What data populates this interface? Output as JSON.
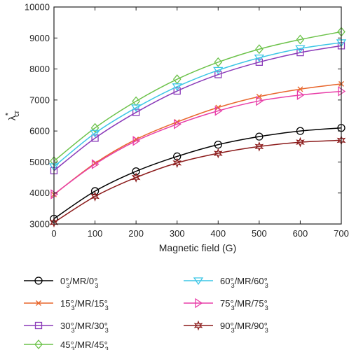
{
  "chart_data": {
    "type": "line",
    "xlabel": "Magnetic field (G)",
    "ylabel": "λ*cr",
    "ylabel_main": "λ",
    "ylabel_sup": "*",
    "ylabel_sub": "cr",
    "x": [
      0,
      100,
      200,
      300,
      400,
      500,
      600,
      700
    ],
    "xlim": [
      0,
      700
    ],
    "ylim": [
      3000,
      10000
    ],
    "xticks": [
      0,
      100,
      200,
      300,
      400,
      500,
      600,
      700
    ],
    "yticks": [
      3000,
      4000,
      5000,
      6000,
      7000,
      8000,
      9000,
      10000
    ],
    "grid": false,
    "legend_position": "bottom",
    "series": [
      {
        "name": "0°3/MR/0°3",
        "angle": "0",
        "color": "#000000",
        "marker": "circle",
        "values": [
          3170,
          4060,
          4700,
          5180,
          5560,
          5820,
          6000,
          6100
        ]
      },
      {
        "name": "15°3/MR/15°3",
        "angle": "15",
        "color": "#e8662c",
        "marker": "x",
        "values": [
          3950,
          4960,
          5730,
          6290,
          6760,
          7110,
          7350,
          7520
        ]
      },
      {
        "name": "30°3/MR/30°3",
        "angle": "30",
        "color": "#8a3ab9",
        "marker": "square",
        "values": [
          4720,
          5770,
          6600,
          7290,
          7820,
          8220,
          8530,
          8750
        ]
      },
      {
        "name": "45°3/MR/45°3",
        "angle": "45",
        "color": "#6cc24a",
        "marker": "diamond",
        "values": [
          5030,
          6100,
          6960,
          7670,
          8220,
          8640,
          8950,
          9200
        ]
      },
      {
        "name": "60°3/MR/60°3",
        "angle": "60",
        "color": "#3cc6e6",
        "marker": "triangle-down",
        "values": [
          4850,
          5930,
          6750,
          7430,
          7960,
          8360,
          8660,
          8850
        ]
      },
      {
        "name": "75°3/MR/75°3",
        "angle": "75",
        "color": "#e83ea8",
        "marker": "triangle-right",
        "values": [
          3960,
          4930,
          5680,
          6220,
          6650,
          6970,
          7160,
          7280
        ]
      },
      {
        "name": "90°3/MR/90°3",
        "angle": "90",
        "color": "#8b1a1a",
        "marker": "star",
        "values": [
          3050,
          3890,
          4500,
          4970,
          5280,
          5500,
          5640,
          5700
        ]
      }
    ]
  }
}
